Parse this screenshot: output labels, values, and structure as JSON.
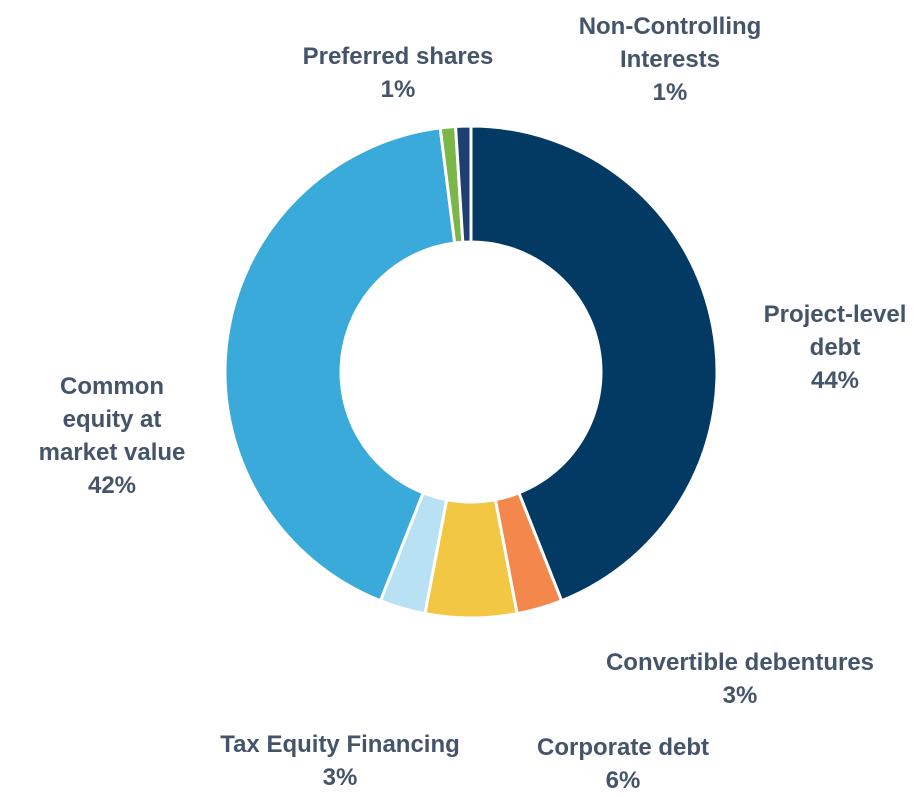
{
  "chart_data": {
    "type": "donut",
    "categories": [
      "Project-level debt",
      "Convertible debentures",
      "Corporate debt",
      "Tax Equity Financing",
      "Common equity at market value",
      "Preferred shares",
      "Non-Controlling Interests"
    ],
    "values": [
      44,
      3,
      6,
      3,
      42,
      1,
      1
    ],
    "value_labels": [
      "44%",
      "3%",
      "6%",
      "3%",
      "42%",
      "1%",
      "1%"
    ],
    "colors": [
      "#023a64",
      "#f4874b",
      "#f2c744",
      "#b8e2f4",
      "#39aad9",
      "#7ab648",
      "#1f3f73"
    ]
  }
}
